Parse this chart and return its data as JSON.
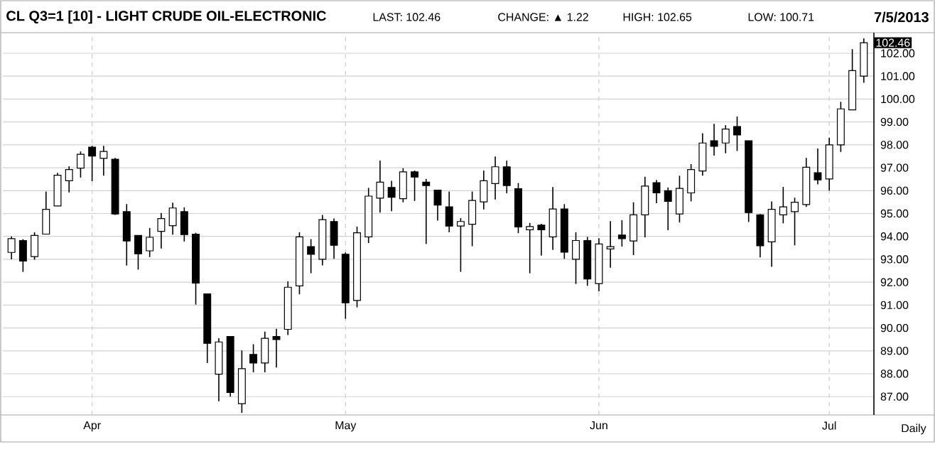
{
  "chart_data": {
    "type": "candlestick",
    "title": "CL Q3=1 [10] - LIGHT CRUDE OIL-ELECTRONIC",
    "annotations": [
      "LAST: 102.46",
      "CHANGE: ▲ 1.22",
      "HIGH: 102.65",
      "LOW: 100.71",
      "7/5/2013",
      "102.46",
      "Daily"
    ],
    "categories": [
      null,
      null,
      null,
      null,
      null,
      null,
      null,
      "Apr",
      null,
      null,
      null,
      null,
      null,
      null,
      null,
      null,
      null,
      null,
      null,
      null,
      null,
      null,
      null,
      null,
      null,
      null,
      null,
      null,
      null,
      "May",
      null,
      null,
      null,
      null,
      null,
      null,
      null,
      null,
      null,
      null,
      null,
      null,
      null,
      null,
      null,
      null,
      null,
      null,
      null,
      null,
      null,
      "Jun",
      null,
      null,
      null,
      null,
      null,
      null,
      null,
      null,
      null,
      null,
      null,
      null,
      null,
      null,
      null,
      null,
      null,
      null,
      null,
      "Jul",
      null,
      null,
      null
    ],
    "ohlc": [
      [
        93.3,
        94.0,
        93.0,
        93.9
      ],
      [
        93.82,
        93.88,
        92.45,
        92.92
      ],
      [
        93.12,
        94.18,
        92.98,
        94.04
      ],
      [
        94.1,
        95.96,
        94.1,
        95.18
      ],
      [
        95.33,
        96.78,
        95.33,
        96.67
      ],
      [
        96.43,
        97.06,
        95.92,
        96.92
      ],
      [
        96.98,
        97.71,
        96.57,
        97.59
      ],
      [
        97.9,
        97.96,
        96.41,
        97.51
      ],
      [
        97.41,
        97.96,
        96.65,
        97.71
      ],
      [
        97.37,
        97.43,
        94.94,
        94.98
      ],
      [
        95.08,
        95.41,
        92.73,
        93.8
      ],
      [
        94.04,
        94.04,
        92.55,
        93.24
      ],
      [
        93.37,
        94.37,
        93.1,
        93.96
      ],
      [
        94.22,
        95.02,
        93.47,
        94.78
      ],
      [
        94.47,
        95.47,
        94.08,
        95.24
      ],
      [
        95.08,
        95.27,
        93.78,
        94.08
      ],
      [
        94.1,
        94.16,
        91.02,
        91.96
      ],
      [
        91.49,
        91.49,
        88.47,
        89.33
      ],
      [
        87.98,
        89.55,
        86.8,
        89.39
      ],
      [
        89.63,
        89.63,
        87.0,
        87.18
      ],
      [
        86.69,
        89.02,
        86.29,
        88.22
      ],
      [
        88.84,
        89.29,
        88.06,
        88.47
      ],
      [
        88.47,
        89.84,
        88.06,
        89.55
      ],
      [
        89.63,
        89.96,
        88.27,
        89.49
      ],
      [
        89.94,
        92.04,
        89.69,
        91.78
      ],
      [
        91.84,
        94.18,
        91.47,
        93.98
      ],
      [
        93.55,
        93.88,
        92.39,
        93.22
      ],
      [
        93.0,
        94.94,
        92.73,
        94.73
      ],
      [
        94.65,
        94.78,
        93.02,
        93.61
      ],
      [
        93.22,
        93.3,
        90.4,
        91.1
      ],
      [
        91.2,
        94.43,
        90.9,
        94.16
      ],
      [
        93.98,
        96.12,
        93.71,
        95.76
      ],
      [
        95.67,
        97.31,
        95.04,
        96.37
      ],
      [
        96.14,
        96.43,
        95.1,
        95.71
      ],
      [
        95.65,
        96.98,
        95.49,
        96.82
      ],
      [
        96.82,
        96.88,
        95.55,
        96.59
      ],
      [
        96.37,
        96.51,
        93.67,
        96.22
      ],
      [
        96.02,
        96.02,
        94.69,
        95.37
      ],
      [
        95.29,
        95.96,
        94.18,
        94.45
      ],
      [
        94.45,
        94.8,
        92.45,
        94.65
      ],
      [
        94.53,
        95.96,
        93.57,
        95.57
      ],
      [
        95.51,
        96.88,
        95.18,
        96.43
      ],
      [
        96.31,
        97.49,
        95.61,
        97.04
      ],
      [
        97.04,
        97.31,
        95.88,
        96.22
      ],
      [
        96.08,
        96.33,
        94.14,
        94.41
      ],
      [
        94.29,
        94.59,
        92.39,
        94.43
      ],
      [
        94.49,
        94.55,
        93.16,
        94.29
      ],
      [
        93.98,
        96.16,
        93.41,
        95.2
      ],
      [
        95.2,
        95.41,
        93.02,
        93.31
      ],
      [
        93.0,
        94.18,
        91.92,
        93.82
      ],
      [
        93.82,
        93.98,
        91.84,
        92.14
      ],
      [
        91.94,
        93.92,
        91.6,
        93.67
      ],
      [
        93.45,
        94.67,
        92.63,
        93.55
      ],
      [
        94.06,
        94.71,
        93.55,
        93.9
      ],
      [
        93.8,
        95.49,
        93.18,
        94.94
      ],
      [
        94.94,
        96.61,
        93.96,
        96.2
      ],
      [
        96.35,
        96.47,
        95.45,
        95.9
      ],
      [
        96.0,
        96.14,
        94.27,
        95.53
      ],
      [
        94.98,
        96.65,
        94.61,
        96.1
      ],
      [
        95.9,
        97.16,
        95.53,
        96.92
      ],
      [
        96.86,
        98.51,
        96.65,
        98.08
      ],
      [
        98.18,
        98.92,
        97.53,
        97.94
      ],
      [
        98.08,
        98.86,
        97.63,
        98.69
      ],
      [
        98.8,
        99.24,
        97.73,
        98.43
      ],
      [
        98.18,
        98.18,
        94.63,
        95.04
      ],
      [
        94.94,
        94.98,
        93.08,
        93.59
      ],
      [
        93.76,
        95.53,
        92.67,
        95.18
      ],
      [
        94.94,
        96.16,
        94.57,
        95.29
      ],
      [
        95.08,
        95.69,
        93.61,
        95.49
      ],
      [
        95.39,
        97.43,
        95.29,
        97.02
      ],
      [
        96.78,
        97.84,
        96.27,
        96.47
      ],
      [
        96.51,
        98.31,
        96.0,
        98.0
      ],
      [
        98.0,
        99.88,
        97.69,
        99.57
      ],
      [
        99.53,
        102.18,
        99.53,
        101.24
      ],
      [
        101.0,
        102.65,
        100.71,
        102.46
      ]
    ],
    "ylim": [
      86.2,
      102.9
    ],
    "yticks": [
      {
        "value": 87,
        "label": "87.00"
      },
      {
        "value": 88,
        "label": "88.00"
      },
      {
        "value": 89,
        "label": "89.00"
      },
      {
        "value": 90,
        "label": "90.00"
      },
      {
        "value": 91,
        "label": "91.00"
      },
      {
        "value": 92,
        "label": "92.00"
      },
      {
        "value": 93,
        "label": "93.00"
      },
      {
        "value": 94,
        "label": "94.00"
      },
      {
        "value": 95,
        "label": "95.00"
      },
      {
        "value": 96,
        "label": "96.00"
      },
      {
        "value": 97,
        "label": "97.00"
      },
      {
        "value": 98,
        "label": "98.00"
      },
      {
        "value": 99,
        "label": "99.00"
      },
      {
        "value": 100,
        "label": "100.00"
      },
      {
        "value": 101,
        "label": "101.00"
      },
      {
        "value": 102,
        "label": "102.00"
      }
    ],
    "grid": true
  }
}
